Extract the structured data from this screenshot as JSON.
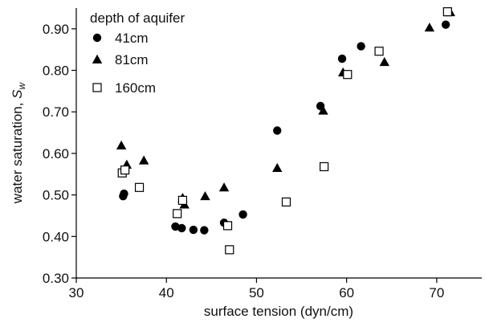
{
  "chart_data": {
    "type": "scatter",
    "title": "",
    "xlabel": "surface tension (dyn/cm)",
    "ylabel_main": "water saturation, ",
    "ylabel_symbol": "S",
    "ylabel_subscript": "w",
    "xlim": [
      30,
      75
    ],
    "ylim": [
      0.3,
      0.95
    ],
    "xticks": [
      30,
      40,
      50,
      60,
      70
    ],
    "xtick_labels": [
      "30",
      "40",
      "50",
      "60",
      "70"
    ],
    "yticks": [
      0.3,
      0.4,
      0.5,
      0.6,
      0.7,
      0.8,
      0.9
    ],
    "ytick_labels": [
      "0.30",
      "0.40",
      "0.50",
      "0.60",
      "0.70",
      "0.80",
      "0.90"
    ],
    "grid": false,
    "legend": {
      "title": "depth of aquifer",
      "position": "top-left"
    },
    "series": [
      {
        "name": "41cm",
        "marker": "filled-circle",
        "color": "#000000",
        "points": [
          [
            35.2,
            0.497
          ],
          [
            35.3,
            0.503
          ],
          [
            41.0,
            0.424
          ],
          [
            41.7,
            0.42
          ],
          [
            43.0,
            0.416
          ],
          [
            44.2,
            0.415
          ],
          [
            46.4,
            0.433
          ],
          [
            48.5,
            0.453
          ],
          [
            52.3,
            0.655
          ],
          [
            57.1,
            0.714
          ],
          [
            59.5,
            0.828
          ],
          [
            61.6,
            0.858
          ],
          [
            71.0,
            0.91
          ]
        ]
      },
      {
        "name": "81cm",
        "marker": "filled-triangle",
        "color": "#000000",
        "points": [
          [
            35.0,
            0.619
          ],
          [
            35.6,
            0.573
          ],
          [
            37.5,
            0.583
          ],
          [
            41.8,
            0.493
          ],
          [
            42.0,
            0.477
          ],
          [
            44.3,
            0.497
          ],
          [
            46.4,
            0.518
          ],
          [
            52.3,
            0.565
          ],
          [
            57.4,
            0.703
          ],
          [
            59.6,
            0.795
          ],
          [
            64.2,
            0.82
          ],
          [
            69.2,
            0.903
          ],
          [
            71.5,
            0.94
          ]
        ]
      },
      {
        "name": "160cm",
        "marker": "open-square",
        "color": "#000000",
        "points": [
          [
            35.1,
            0.553
          ],
          [
            35.4,
            0.56
          ],
          [
            37.0,
            0.518
          ],
          [
            41.2,
            0.455
          ],
          [
            41.8,
            0.487
          ],
          [
            46.8,
            0.426
          ],
          [
            47.0,
            0.368
          ],
          [
            53.3,
            0.483
          ],
          [
            57.5,
            0.568
          ],
          [
            60.1,
            0.79
          ],
          [
            63.6,
            0.846
          ],
          [
            71.2,
            0.941
          ]
        ]
      }
    ]
  }
}
